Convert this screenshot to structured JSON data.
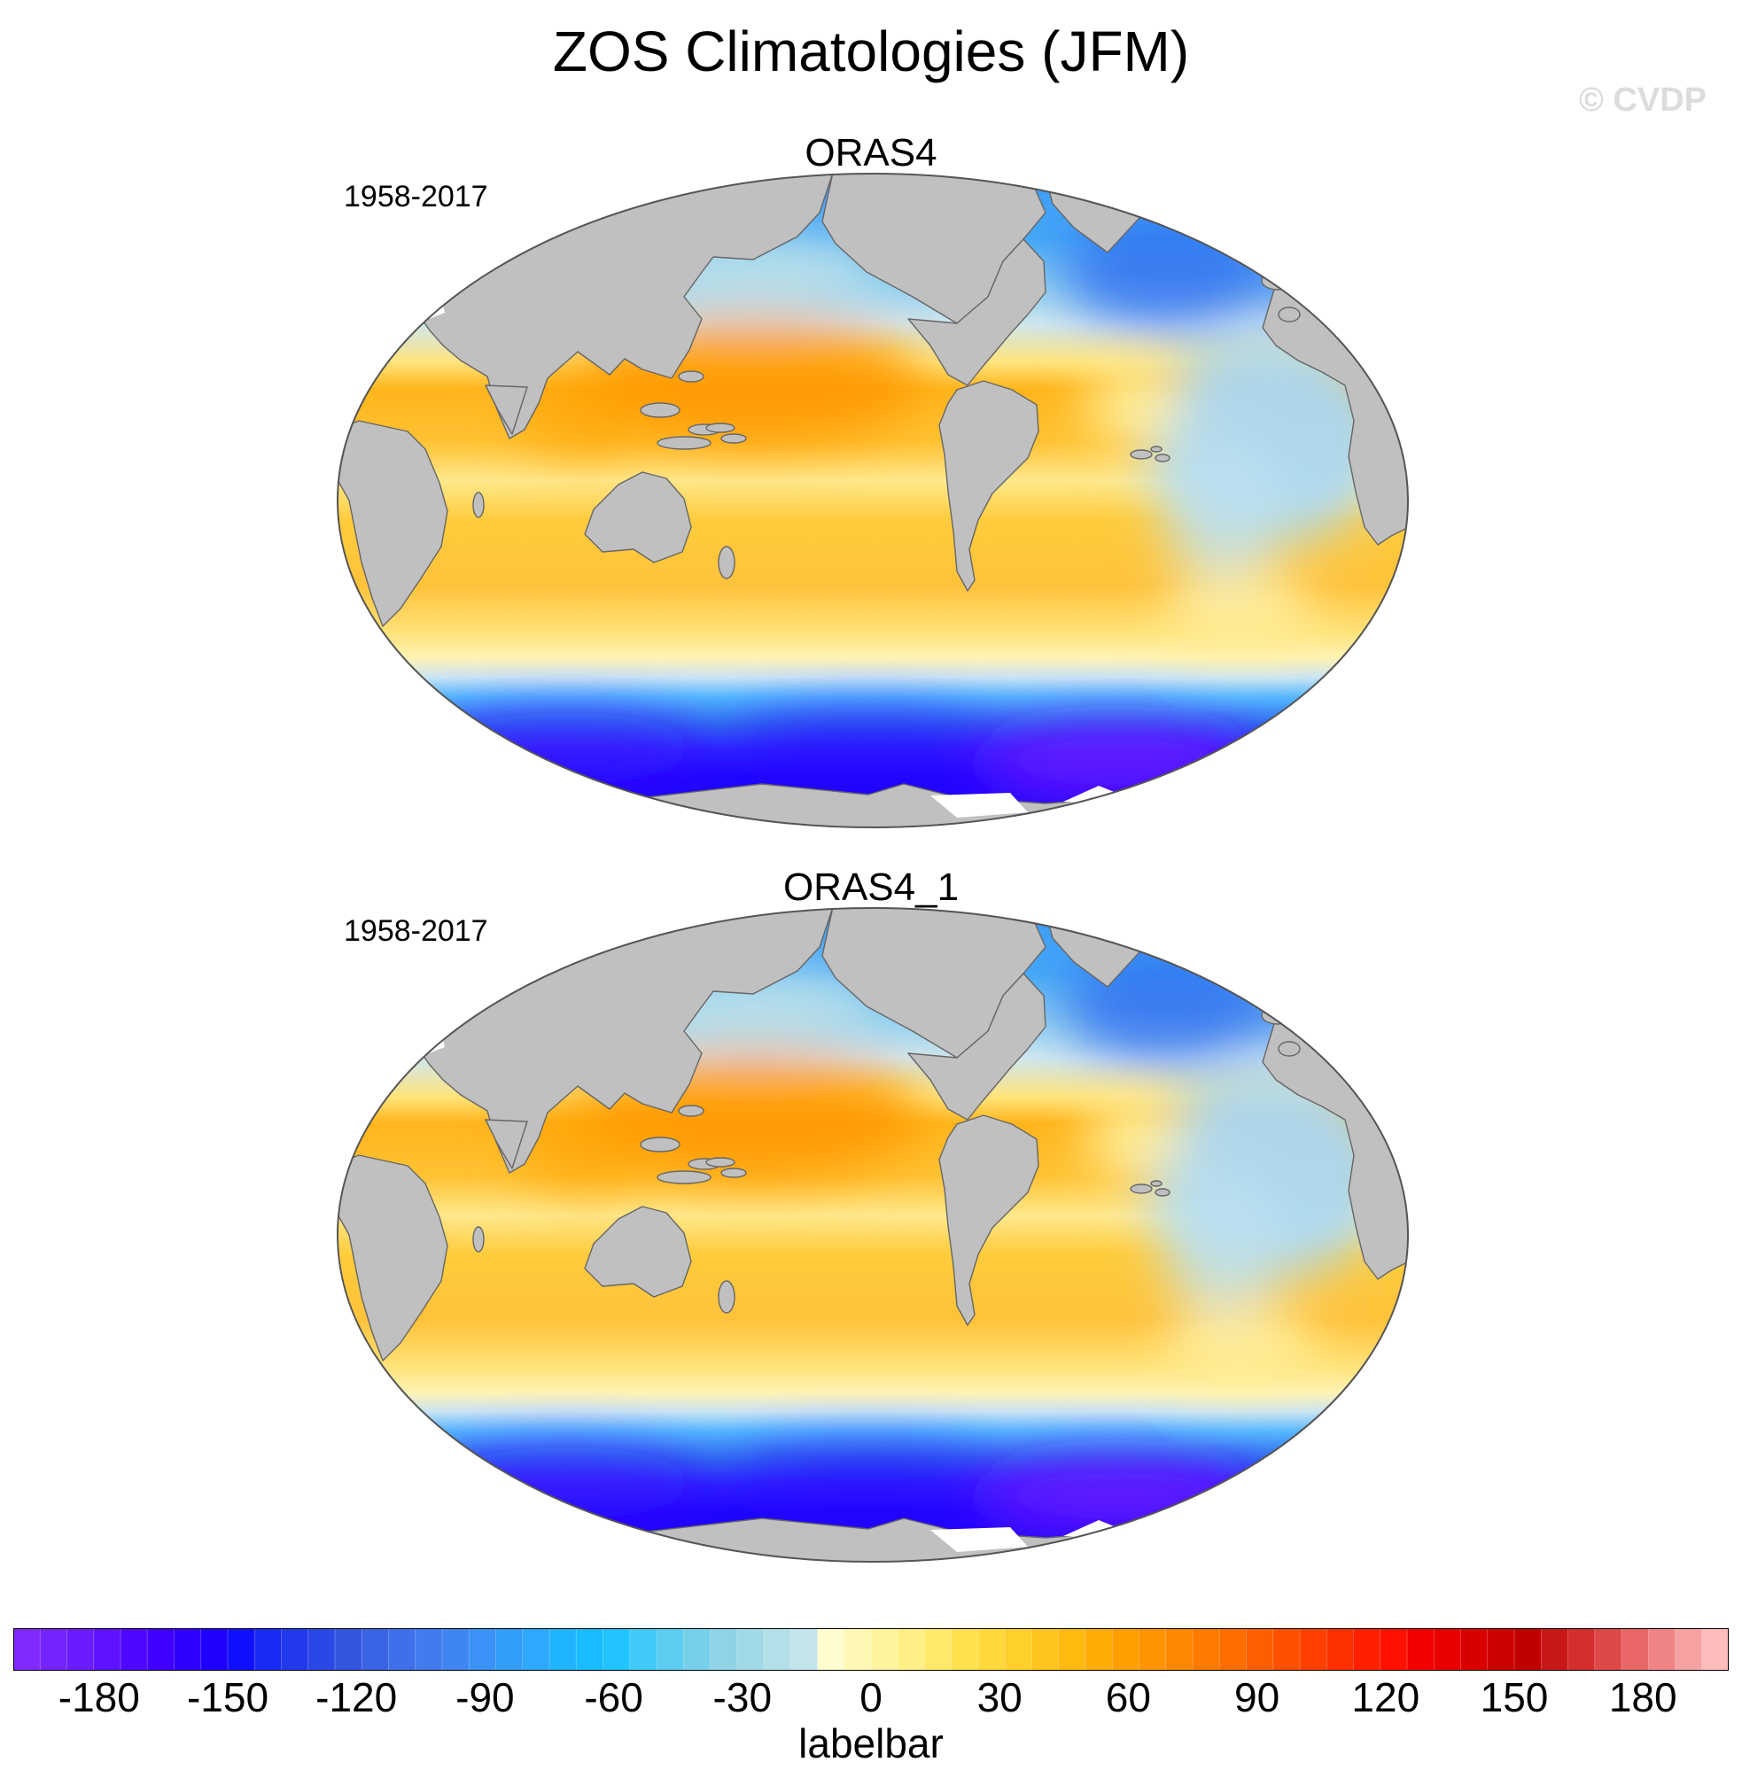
{
  "figure": {
    "title": "ZOS Climatologies (JFM)",
    "watermark": "© CVDP"
  },
  "panels": [
    {
      "name": "ORAS4",
      "period": "1958-2017"
    },
    {
      "name": "ORAS4_1",
      "period": "1958-2017"
    }
  ],
  "colorbar": {
    "title": "labelbar",
    "tick_labels": [
      "-180",
      "-150",
      "-120",
      "-90",
      "-60",
      "-30",
      "0",
      "30",
      "60",
      "90",
      "120",
      "150",
      "180"
    ],
    "tick_values": [
      -180,
      -150,
      -120,
      -90,
      -60,
      -30,
      0,
      30,
      60,
      90,
      120,
      150,
      180
    ],
    "range": [
      -200,
      200
    ],
    "colors": [
      "#7f2bff",
      "#7523ff",
      "#6a1bff",
      "#5e12ff",
      "#4f08ff",
      "#3f00ff",
      "#2f00ff",
      "#1f00ff",
      "#1010ff",
      "#1a2af5",
      "#2239ee",
      "#2a48e6",
      "#3355e0",
      "#3b63e5",
      "#3f6fea",
      "#427bef",
      "#3f86f2",
      "#3a92f6",
      "#339dfa",
      "#2ca8fc",
      "#20b4ff",
      "#18bcff",
      "#22c4ff",
      "#40caf7",
      "#5ccdf0",
      "#76d0ea",
      "#8ed4e6",
      "#a2d9e6",
      "#b3dfe8",
      "#c2e4ea",
      "#fffcd0",
      "#fff8b4",
      "#fff49e",
      "#fff085",
      "#ffe96a",
      "#ffe150",
      "#ffd93b",
      "#ffd02a",
      "#ffc51c",
      "#ffb90f",
      "#ffad06",
      "#ffa000",
      "#ff9400",
      "#ff8700",
      "#ff7a00",
      "#ff6c00",
      "#ff5e00",
      "#ff5000",
      "#ff4000",
      "#ff3000",
      "#ff2000",
      "#ff1000",
      "#f50000",
      "#e80000",
      "#da0000",
      "#cc0000",
      "#c00000",
      "#c81818",
      "#d42e2e",
      "#de4848",
      "#e86666",
      "#f08484",
      "#f7a2a2",
      "#ffbcbc"
    ]
  },
  "legend_colors": {
    "land": "#c0c0c0",
    "no_data": "#ffffff",
    "coast": "#666666"
  }
}
